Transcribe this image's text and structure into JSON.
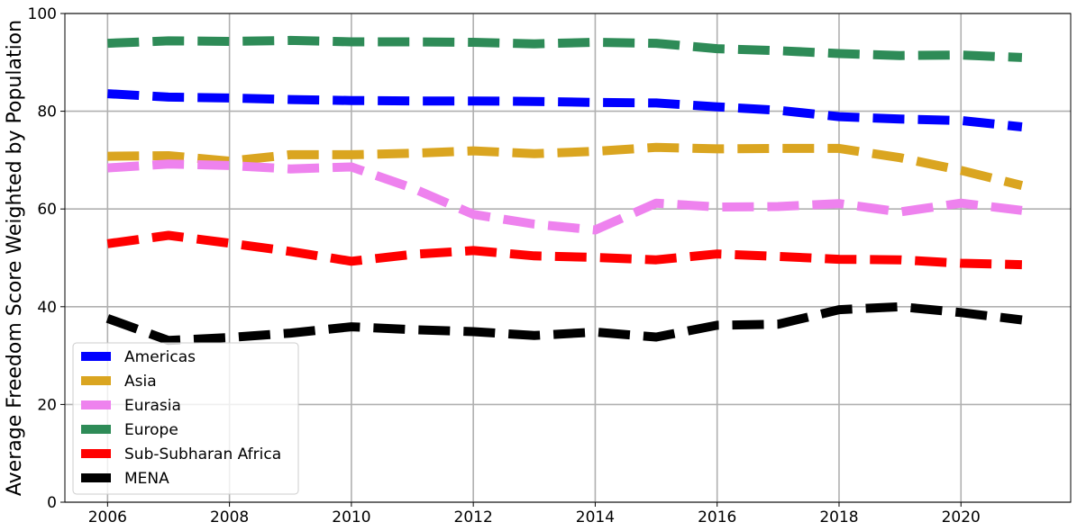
{
  "chart_data": {
    "type": "line",
    "title": "",
    "xlabel": "",
    "ylabel": "Average Freedom Score Weighted by Population",
    "xlim": [
      2005.3,
      2021.8
    ],
    "ylim": [
      0,
      100
    ],
    "x_ticks": [
      2006,
      2008,
      2010,
      2012,
      2014,
      2016,
      2018,
      2020
    ],
    "y_ticks": [
      0,
      20,
      40,
      60,
      80,
      100
    ],
    "grid": true,
    "legend_position": "lower-left",
    "line_style": "dashed",
    "x": [
      2006,
      2007,
      2008,
      2009,
      2010,
      2011,
      2012,
      2013,
      2014,
      2015,
      2016,
      2017,
      2018,
      2019,
      2020,
      2021
    ],
    "series": [
      {
        "name": "Americas",
        "color": "#0000ff",
        "values": [
          83.6,
          82.9,
          82.7,
          82.4,
          82.2,
          82.1,
          82.1,
          82.0,
          81.8,
          81.7,
          80.9,
          80.2,
          78.9,
          78.4,
          78.1,
          76.8
        ]
      },
      {
        "name": "Asia",
        "color": "#daa520",
        "values": [
          70.8,
          70.9,
          69.8,
          71.1,
          71.1,
          71.4,
          71.9,
          71.3,
          71.8,
          72.6,
          72.3,
          72.4,
          72.4,
          70.5,
          67.9,
          64.8
        ]
      },
      {
        "name": "Eurasia",
        "color": "#ee82ee",
        "values": [
          68.4,
          69.2,
          68.9,
          68.2,
          68.6,
          64.3,
          58.9,
          56.9,
          55.7,
          61.2,
          60.4,
          60.5,
          61.1,
          59.4,
          61.2,
          59.7
        ]
      },
      {
        "name": "Europe",
        "color": "#2e8b57",
        "values": [
          93.9,
          94.4,
          94.3,
          94.5,
          94.2,
          94.2,
          94.1,
          93.8,
          94.1,
          93.9,
          92.8,
          92.4,
          91.8,
          91.4,
          91.5,
          91.0
        ]
      },
      {
        "name": "Sub-Subharan Africa",
        "color": "#ff0000",
        "values": [
          52.9,
          54.6,
          53.0,
          51.3,
          49.3,
          50.7,
          51.5,
          50.4,
          50.1,
          49.6,
          50.8,
          50.3,
          49.7,
          49.6,
          48.9,
          48.6
        ]
      },
      {
        "name": "MENA",
        "color": "#000000",
        "values": [
          37.6,
          33.1,
          33.7,
          34.6,
          35.9,
          35.3,
          34.9,
          34.1,
          34.8,
          33.8,
          36.2,
          36.4,
          39.4,
          40.0,
          38.8,
          37.3
        ]
      }
    ]
  }
}
